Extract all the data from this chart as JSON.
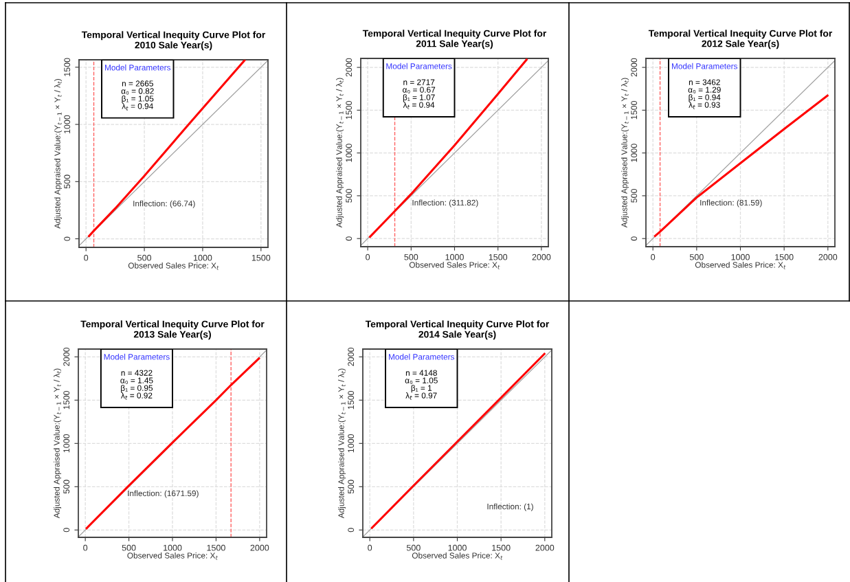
{
  "chart_data": [
    {
      "type": "line",
      "title": "Temporal Vertical Inequity Curve Plot for\n2010 Sale Year(s)",
      "xlabel": "Observed Sales Price: X$_{t}$",
      "ylabel": "Adjusted Appraised Value:(Y$_{t−1}$ × Y$_{t}$ / λ$_{t}$)",
      "xlim": [
        -60,
        1560
      ],
      "ylim": [
        -75,
        1565
      ],
      "xticks": [
        0,
        500,
        1000,
        1500
      ],
      "yticks": [
        0,
        500,
        1000,
        1500
      ],
      "grid": true,
      "legend": false,
      "series": [
        {
          "color": "#ff0000",
          "x": [
            26,
            67,
            250,
            500,
            880,
            1200,
            1359
          ],
          "values": [
            24,
            70,
            265,
            550,
            1000,
            1375,
            1560
          ]
        },
        {
          "color": "#a0a0a0",
          "x": [
            -60,
            1560
          ],
          "values": [
            -60,
            1560
          ]
        }
      ],
      "ref_lines": [
        {
          "axis": "x",
          "value": 66.74,
          "label": null,
          "color": "#ff6060",
          "line_style": "dashed"
        }
      ],
      "annotations": [
        "Model Parameters",
        "n = 2665\nα₀ = 0.82\nβ₁ = 1.05\nλ$_{t}$ = 0.94",
        "Inflection: (66.74)"
      ]
    },
    {
      "type": "line",
      "title": "Temporal Vertical Inequity Curve Plot for\n2011 Sale Year(s)",
      "xlabel": "Observed Sales Price: X$_{t}$",
      "ylabel": "Adjusted Appraised Value:(Y$_{t−1}$ × Y$_{t}$ / λ$_{t}$)",
      "xlim": [
        -80,
        2080
      ],
      "ylim": [
        -95,
        2105
      ],
      "xticks": [
        0,
        500,
        1000,
        1500,
        2000
      ],
      "yticks": [
        0,
        500,
        1000,
        1500,
        2000
      ],
      "grid": true,
      "legend": false,
      "series": [
        {
          "color": "#ff0000",
          "x": [
            27,
            312,
            500,
            1000,
            1500,
            1829
          ],
          "values": [
            20,
            320,
            520,
            1090,
            1690,
            2090
          ]
        },
        {
          "color": "#a0a0a0",
          "x": [
            -80,
            2080
          ],
          "values": [
            -80,
            2080
          ]
        }
      ],
      "ref_lines": [
        {
          "axis": "x",
          "value": 311.82,
          "label": null,
          "color": "#ff6060",
          "line_style": "dashed"
        }
      ],
      "annotations": [
        "Model Parameters",
        "n = 2717\nα₀ = 0.67\nβ₁ = 1.07\nλ$_{t}$ = 0.94",
        "Inflection: (311.82)"
      ]
    },
    {
      "type": "line",
      "title": "Temporal Vertical Inequity Curve Plot for\n2012 Sale Year(s)",
      "xlabel": "Observed Sales Price: X$_{t}$",
      "ylabel": "Adjusted Appraised Value:(Y$_{t−1}$ × Y$_{t}$ / λ$_{t}$)",
      "xlim": [
        -80,
        2080
      ],
      "ylim": [
        -95,
        2105
      ],
      "xticks": [
        0,
        500,
        1000,
        1500,
        2000
      ],
      "yticks": [
        0,
        500,
        1000,
        1500,
        2000
      ],
      "grid": true,
      "legend": false,
      "series": [
        {
          "color": "#ff0000",
          "x": [
            25,
            82,
            500,
            1000,
            1500,
            1995
          ],
          "values": [
            30,
            80,
            480,
            880,
            1280,
            1670
          ]
        },
        {
          "color": "#a0a0a0",
          "x": [
            -80,
            2080
          ],
          "values": [
            -80,
            2080
          ]
        }
      ],
      "ref_lines": [
        {
          "axis": "x",
          "value": 81.59,
          "label": null,
          "color": "#ff6060",
          "line_style": "dashed"
        }
      ],
      "annotations": [
        "Model Parameters",
        "n = 3462\nα₀ = 1.29\nβ₁ = 0.94\nλ$_{t}$ = 0.93",
        "Inflection: (81.59)"
      ]
    },
    {
      "type": "line",
      "title": "Temporal Vertical Inequity Curve Plot for\n2013 Sale Year(s)",
      "xlabel": "Observed Sales Price: X$_{t}$",
      "ylabel": "Adjusted Appraised Value:(Y$_{t−1}$ × Y$_{t}$ / λ$_{t}$)",
      "xlim": [
        -80,
        2080
      ],
      "ylim": [
        -85,
        2090
      ],
      "xticks": [
        0,
        500,
        1000,
        1500,
        2000
      ],
      "yticks": [
        0,
        500,
        1000,
        1500,
        2000
      ],
      "grid": true,
      "legend": false,
      "series": [
        {
          "color": "#ff0000",
          "x": [
            15,
            487,
            1000,
            1500,
            1672,
            1992
          ],
          "values": [
            20,
            500,
            1010,
            1500,
            1675,
            1981
          ]
        },
        {
          "color": "#a0a0a0",
          "x": [
            -80,
            2080
          ],
          "values": [
            -80,
            2080
          ]
        }
      ],
      "ref_lines": [
        {
          "axis": "x",
          "value": 1671.59,
          "label": null,
          "color": "#ff6060",
          "line_style": "dashed"
        }
      ],
      "annotations": [
        "Model Parameters",
        "n = 4322\nα₀ = 1.45\nβ₁ = 0.95\nλ$_{t}$ = 0.92",
        "Inflection: (1671.59)"
      ]
    },
    {
      "type": "line",
      "title": "Temporal Vertical Inequity Curve Plot for\n2014 Sale Year(s)",
      "xlabel": "Observed Sales Price: X$_{t}$",
      "ylabel": "Adjusted Appraised Value:(Y$_{t−1}$ × Y$_{t}$ / λ$_{t}$)",
      "xlim": [
        -80,
        2080
      ],
      "ylim": [
        -85,
        2090
      ],
      "xticks": [
        0,
        500,
        1000,
        1500,
        2000
      ],
      "yticks": [
        0,
        500,
        1000,
        1500,
        2000
      ],
      "grid": true,
      "legend": false,
      "series": [
        {
          "color": "#ff0000",
          "x": [
            25,
            500,
            1000,
            1500,
            1995
          ],
          "values": [
            25,
            512,
            1020,
            1527,
            2034
          ]
        },
        {
          "color": "#a0a0a0",
          "x": [
            -80,
            2080
          ],
          "values": [
            -80,
            2080
          ]
        }
      ],
      "annotations": [
        "Model Parameters",
        "n = 4148\nα₀ = 1.05\nβ₁ = 1\nλ$_{t}$ = 0.97",
        "Inflection: (1)"
      ]
    }
  ]
}
